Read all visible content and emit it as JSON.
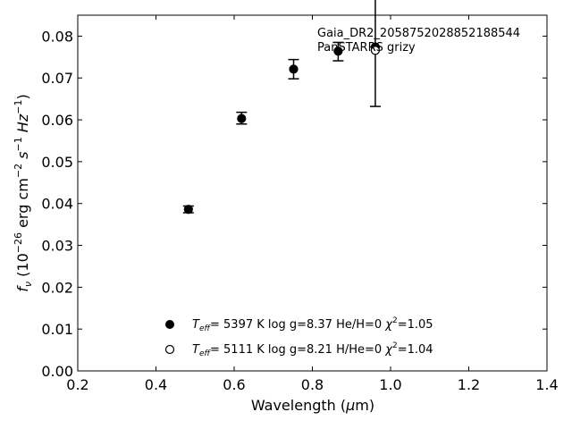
{
  "chart_data": {
    "type": "scatter",
    "annotation": [
      "Gaia_DR2_2058752028852188544",
      "PanSTARRS grizy"
    ],
    "xlabel": {
      "prefix": "Wavelength (",
      "greek": "μ",
      "suffix": "m)"
    },
    "ylabel": {
      "f": "f",
      "sub": "ν",
      "unit_pre": " (10",
      "exp": "−26",
      "unit_mid": " erg cm",
      "exp2": "−2",
      "unit_s": " s",
      "exp3": "−1",
      "unit_hz": " Hz",
      "exp4": "−1",
      "close": ")"
    },
    "xlim": [
      0.2,
      1.4
    ],
    "ylim": [
      0.0,
      0.085
    ],
    "xticks": [
      0.2,
      0.4,
      0.6,
      0.8,
      1.0,
      1.2,
      1.4
    ],
    "xtick_labels": [
      "0.2",
      "0.4",
      "0.6",
      "0.8",
      "1.0",
      "1.2",
      "1.4"
    ],
    "yticks": [
      0.0,
      0.01,
      0.02,
      0.03,
      0.04,
      0.05,
      0.06,
      0.07,
      0.08
    ],
    "ytick_labels": [
      "0.00",
      "0.01",
      "0.02",
      "0.03",
      "0.04",
      "0.05",
      "0.06",
      "0.07",
      "0.08"
    ],
    "grid": false,
    "legend_placement": "lower-center",
    "observed": {
      "marker": "errorbar-cap",
      "points": [
        {
          "x": 0.483,
          "y": 0.0386,
          "err": 0.0008
        },
        {
          "x": 0.619,
          "y": 0.0604,
          "err": 0.0014
        },
        {
          "x": 0.752,
          "y": 0.0721,
          "err": 0.0023
        },
        {
          "x": 0.866,
          "y": 0.0763,
          "err": 0.0022
        },
        {
          "x": 0.961,
          "y": 0.077,
          "err": 0.0138
        }
      ]
    },
    "series": [
      {
        "marker": "filled-circle",
        "color": "#000000",
        "label": {
          "teff_T": "T",
          "teff_sub": "eff",
          "text": "=  5397 K  log g=8.37  He/H=0  ",
          "chi": "χ",
          "chi_exp": "2",
          "chi_val": "=1.05"
        },
        "points": [
          {
            "x": 0.483,
            "y": 0.0386
          },
          {
            "x": 0.619,
            "y": 0.0603
          },
          {
            "x": 0.752,
            "y": 0.0721
          },
          {
            "x": 0.866,
            "y": 0.0764
          },
          {
            "x": 0.961,
            "y": 0.0774
          }
        ]
      },
      {
        "marker": "open-circle",
        "color": "#000000",
        "label": {
          "teff_T": "T",
          "teff_sub": "eff",
          "text": "=  5111 K  log g=8.21  H/He=0  ",
          "chi": "χ",
          "chi_exp": "2",
          "chi_val": "=1.04"
        },
        "points": [
          {
            "x": 0.961,
            "y": 0.0766
          }
        ]
      }
    ]
  }
}
